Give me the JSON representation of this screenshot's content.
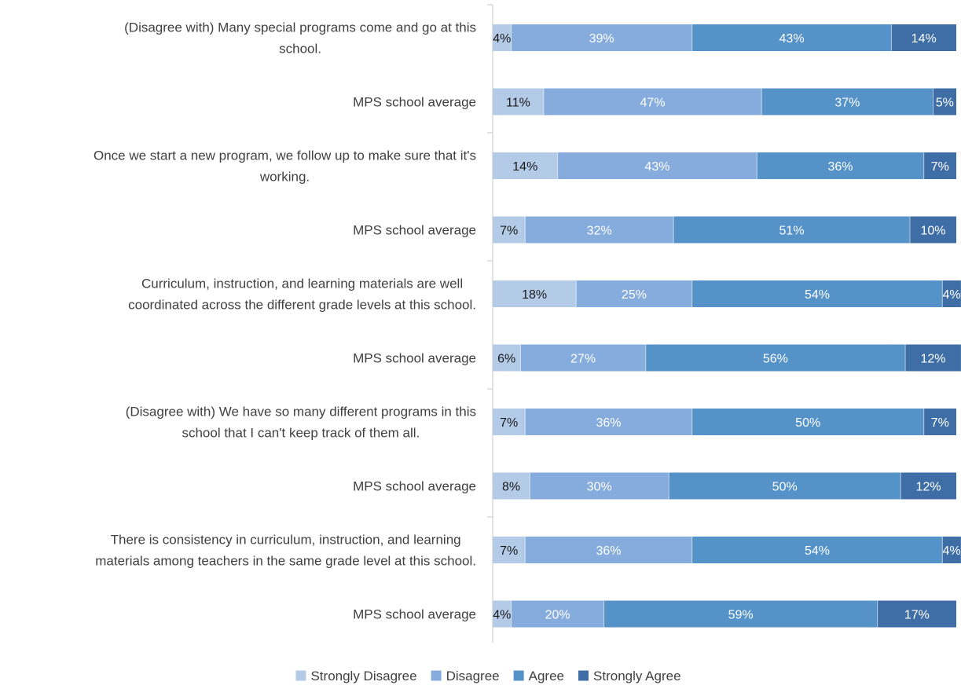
{
  "chart_data": {
    "type": "bar",
    "orientation": "horizontal",
    "stacked": true,
    "percent_stacked": true,
    "title": "",
    "xlabel": "",
    "ylabel": "",
    "categories": [
      [
        "(Disagree with) Many special programs come and go at this",
        "school."
      ],
      [
        "MPS school average"
      ],
      [
        "Once we start a new program, we follow up to make sure that it's",
        "working."
      ],
      [
        "MPS school average"
      ],
      [
        "Curriculum, instruction, and learning materials are well",
        "coordinated across the different grade levels at this school."
      ],
      [
        "MPS school average"
      ],
      [
        "(Disagree with) We have so many different programs in this",
        "school that I can't keep track of them all."
      ],
      [
        "MPS school average"
      ],
      [
        "There is consistency in curriculum, instruction, and learning",
        "materials among teachers in the same grade level at this school."
      ],
      [
        "MPS school average"
      ]
    ],
    "series": [
      {
        "name": "Strongly Disagree",
        "color": "#b4cbe8",
        "label_color": "#1a1a1a",
        "values": [
          4,
          11,
          14,
          7,
          18,
          6,
          7,
          8,
          7,
          4
        ],
        "labels": [
          "4%",
          "11%",
          "14%",
          "7%",
          "18%",
          "6%",
          "7%",
          "8%",
          "7%",
          "4%"
        ]
      },
      {
        "name": "Disagree",
        "color": "#85acdc",
        "label_color": "#ffffff",
        "values": [
          39,
          47,
          43,
          32,
          25,
          27,
          36,
          30,
          36,
          20
        ],
        "labels": [
          "39%",
          "47%",
          "43%",
          "32%",
          "25%",
          "27%",
          "36%",
          "30%",
          "36%",
          "20%"
        ]
      },
      {
        "name": "Agree",
        "color": "#5592c8",
        "label_color": "#ffffff",
        "values": [
          43,
          37,
          36,
          51,
          54,
          56,
          50,
          50,
          54,
          59
        ],
        "labels": [
          "43%",
          "37%",
          "36%",
          "51%",
          "54%",
          "56%",
          "50%",
          "50%",
          "54%",
          "59%"
        ]
      },
      {
        "name": "Strongly Agree",
        "color": "#3f6ea6",
        "label_color": "#ffffff",
        "values": [
          14,
          5,
          7,
          10,
          4,
          12,
          7,
          12,
          4,
          17
        ],
        "labels": [
          "14%",
          "5%",
          "7%",
          "10%",
          "4%",
          "12%",
          "7%",
          "12%",
          "4%",
          "17%"
        ]
      }
    ],
    "xlim": [
      0,
      100
    ],
    "grid": false,
    "legend_position": "bottom"
  }
}
